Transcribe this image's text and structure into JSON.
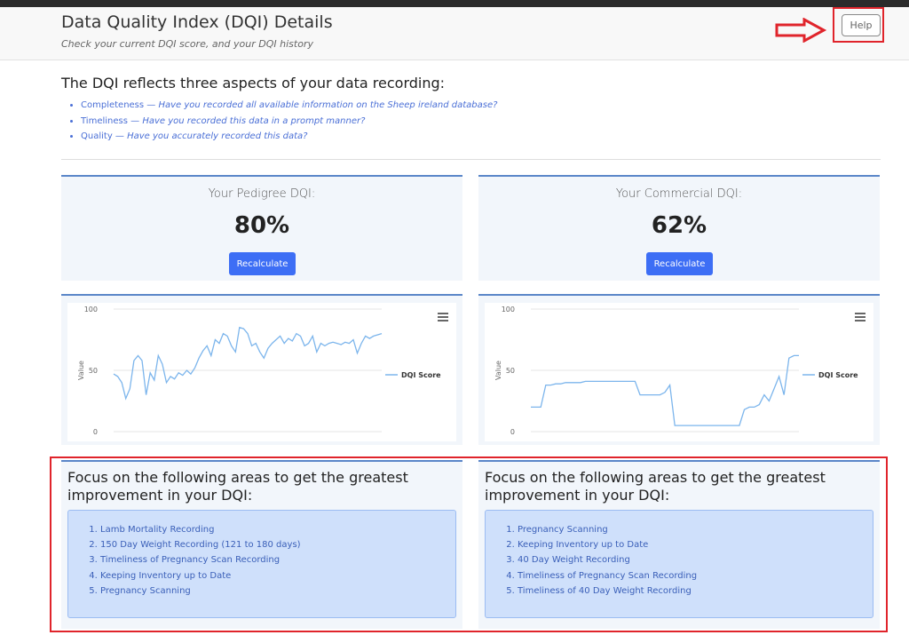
{
  "header": {
    "title": "Data Quality Index (DQI) Details",
    "subtitle": "Check your current DQI score, and your DQI history",
    "help": "Help"
  },
  "intro": {
    "heading": "The DQI reflects three aspects of your data recording:",
    "items": [
      {
        "term": "Completeness —",
        "description": "Have you recorded all available information on the Sheep ireland database?"
      },
      {
        "term": "Timeliness —",
        "description": "Have you recorded this data in a prompt manner?"
      },
      {
        "term": "Quality —",
        "description": "Have you accurately recorded this data?"
      }
    ]
  },
  "cards": [
    {
      "label": "Your Pedigree DQI:",
      "score": "80%",
      "button": "Recalculate"
    },
    {
      "label": "Your Commercial DQI:",
      "score": "62%",
      "button": "Recalculate"
    }
  ],
  "chart_data": [
    {
      "type": "line",
      "y_label": "Value",
      "ylim": [
        0,
        100
      ],
      "yticks": [
        0,
        50,
        100
      ],
      "grid": true,
      "series": [
        {
          "name": "DQI Score",
          "color": "#7cb5ec",
          "values": [
            47,
            45,
            40,
            27,
            35,
            58,
            62,
            58,
            30,
            48,
            42,
            62,
            55,
            40,
            45,
            43,
            48,
            46,
            50,
            47,
            52,
            60,
            66,
            70,
            62,
            75,
            72,
            80,
            78,
            70,
            65,
            85,
            84,
            80,
            70,
            72,
            65,
            60,
            68,
            72,
            75,
            78,
            72,
            76,
            74,
            80,
            78,
            70,
            72,
            78,
            65,
            72,
            70,
            72,
            73,
            72,
            71,
            73,
            72,
            75,
            64,
            72,
            78,
            76,
            78,
            79,
            80
          ]
        }
      ]
    },
    {
      "type": "line",
      "y_label": "Value",
      "ylim": [
        0,
        100
      ],
      "yticks": [
        0,
        50,
        100
      ],
      "grid": true,
      "series": [
        {
          "name": "DQI Score",
          "color": "#7cb5ec",
          "values": [
            20,
            20,
            20,
            38,
            38,
            39,
            39,
            40,
            40,
            40,
            40,
            41,
            41,
            41,
            41,
            41,
            41,
            41,
            41,
            41,
            41,
            41,
            30,
            30,
            30,
            30,
            30,
            32,
            38,
            5,
            5,
            5,
            5,
            5,
            5,
            5,
            5,
            5,
            5,
            5,
            5,
            5,
            5,
            18,
            20,
            20,
            22,
            30,
            25,
            35,
            45,
            30,
            60,
            62,
            62
          ]
        }
      ]
    }
  ],
  "focus": [
    {
      "heading": "Focus on the following areas to get the greatest improvement in your DQI:",
      "items": [
        "Lamb Mortality Recording",
        "150 Day Weight Recording (121 to 180 days)",
        "Timeliness of Pregnancy Scan Recording",
        "Keeping Inventory up to Date",
        "Pregnancy Scanning"
      ]
    },
    {
      "heading": "Focus on the following areas to get the greatest improvement in your DQI:",
      "items": [
        "Pregnancy Scanning",
        "Keeping Inventory up to Date",
        "40 Day Weight Recording",
        "Timeliness of Pregnancy Scan Recording",
        "Timeliness of 40 Day Weight Recording"
      ]
    }
  ]
}
